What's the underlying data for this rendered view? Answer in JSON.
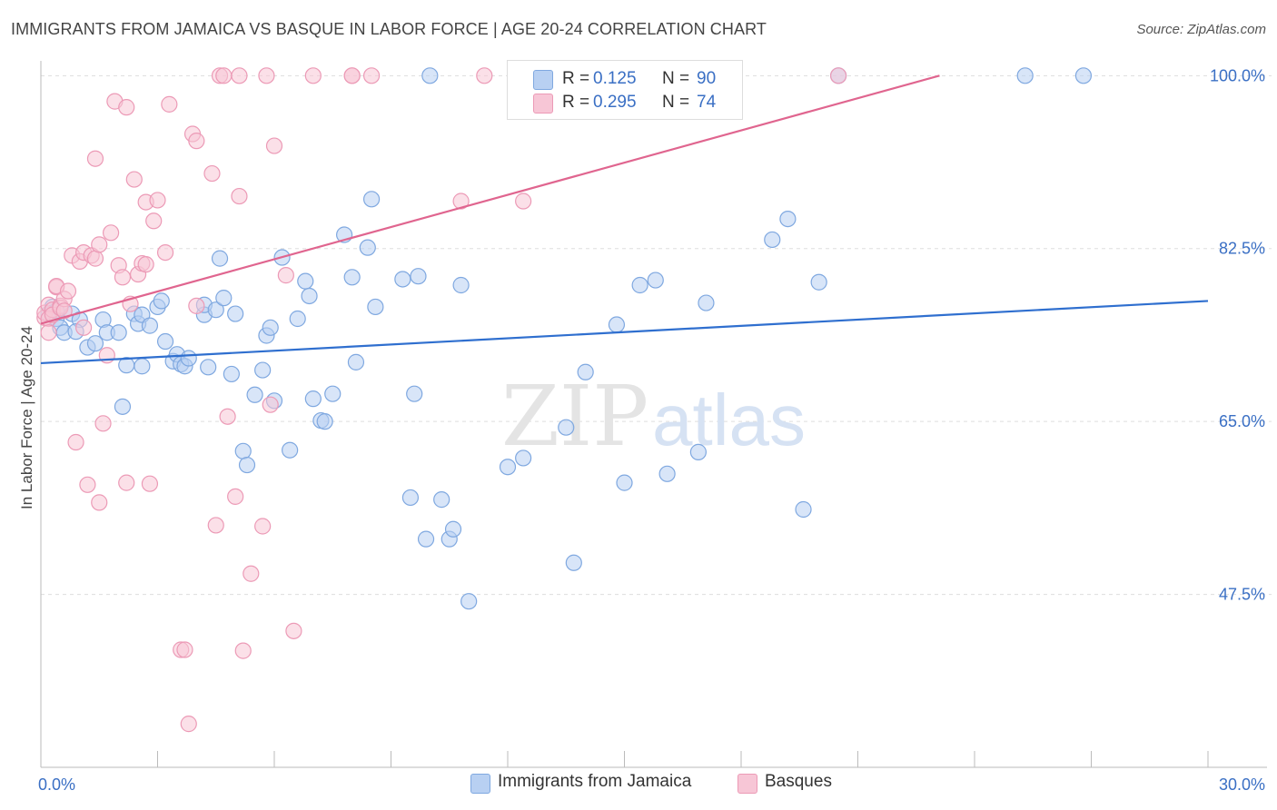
{
  "title": "IMMIGRANTS FROM JAMAICA VS BASQUE IN LABOR FORCE | AGE 20-24 CORRELATION CHART",
  "source": "Source: ZipAtlas.com",
  "watermark": {
    "zip": "ZIP",
    "atlas": "atlas"
  },
  "colors": {
    "blue_fill": "#b8d0f2",
    "blue_stroke": "#7fa8e0",
    "blue_line": "#2f6fcf",
    "pink_fill": "#f7c6d6",
    "pink_stroke": "#ec9ab6",
    "pink_line": "#e0658f",
    "axis_text": "#3a6fc4",
    "grid": "#dddddd"
  },
  "legend": {
    "rows": [
      {
        "r_label": "R =",
        "r_value": "0.125",
        "n_label": "N =",
        "n_value": "90",
        "series": "blue"
      },
      {
        "r_label": "R =",
        "r_value": "0.295",
        "n_label": "N =",
        "n_value": "74",
        "series": "pink"
      }
    ]
  },
  "bottom_legend": [
    {
      "label": "Immigrants from Jamaica",
      "series": "blue"
    },
    {
      "label": "Basques",
      "series": "pink"
    }
  ],
  "chart_data": {
    "type": "scatter",
    "title": "IMMIGRANTS FROM JAMAICA VS BASQUE IN LABOR FORCE | AGE 20-24 CORRELATION CHART",
    "xlabel": "",
    "ylabel": "In Labor Force | Age 20-24",
    "xlim": [
      0,
      30
    ],
    "ylim": [
      30,
      101.5
    ],
    "x_tick_labels": [
      {
        "value": 0,
        "label": "0.0%"
      },
      {
        "value": 30,
        "label": "30.0%"
      }
    ],
    "y_tick_labels": [
      {
        "value": 100,
        "label": "100.0%"
      },
      {
        "value": 82.5,
        "label": "82.5%"
      },
      {
        "value": 65,
        "label": "65.0%"
      },
      {
        "value": 47.5,
        "label": "47.5%"
      }
    ],
    "x_minor_ticks": [
      0,
      3,
      6,
      9,
      12,
      15,
      18,
      21,
      24,
      27,
      30
    ],
    "series": [
      {
        "name": "Immigrants from Jamaica",
        "color": "blue",
        "trend": {
          "x": [
            0,
            30
          ],
          "y": [
            70.9,
            77.2
          ]
        },
        "points": [
          [
            0.2,
            75.9
          ],
          [
            0.3,
            76.6
          ],
          [
            0.3,
            76.0
          ],
          [
            0.4,
            75.4
          ],
          [
            0.5,
            74.5
          ],
          [
            0.6,
            74.0
          ],
          [
            0.8,
            75.9
          ],
          [
            1.0,
            75.3
          ],
          [
            1.2,
            72.5
          ],
          [
            1.4,
            72.9
          ],
          [
            1.6,
            75.3
          ],
          [
            1.7,
            74.0
          ],
          [
            2.0,
            74.0
          ],
          [
            2.1,
            66.5
          ],
          [
            2.2,
            70.7
          ],
          [
            2.4,
            75.9
          ],
          [
            2.5,
            74.9
          ],
          [
            2.6,
            75.8
          ],
          [
            2.8,
            74.7
          ],
          [
            2.6,
            70.6
          ],
          [
            3.0,
            76.6
          ],
          [
            3.1,
            77.2
          ],
          [
            3.2,
            73.1
          ],
          [
            3.4,
            71.1
          ],
          [
            3.5,
            71.8
          ],
          [
            3.6,
            70.8
          ],
          [
            3.7,
            70.6
          ],
          [
            3.8,
            71.4
          ],
          [
            4.2,
            75.8
          ],
          [
            4.2,
            76.8
          ],
          [
            4.3,
            70.5
          ],
          [
            4.5,
            76.3
          ],
          [
            4.6,
            81.5
          ],
          [
            4.7,
            77.5
          ],
          [
            4.9,
            69.8
          ],
          [
            5.0,
            75.9
          ],
          [
            5.2,
            62.0
          ],
          [
            5.3,
            60.6
          ],
          [
            5.5,
            67.7
          ],
          [
            5.7,
            70.2
          ],
          [
            5.8,
            73.7
          ],
          [
            5.9,
            74.5
          ],
          [
            6.0,
            67.1
          ],
          [
            6.2,
            81.6
          ],
          [
            6.4,
            62.1
          ],
          [
            6.6,
            75.4
          ],
          [
            6.8,
            79.2
          ],
          [
            6.9,
            77.7
          ],
          [
            7.0,
            67.3
          ],
          [
            7.2,
            65.1
          ],
          [
            7.3,
            65.0
          ],
          [
            7.5,
            67.8
          ],
          [
            7.8,
            83.9
          ],
          [
            8.0,
            79.6
          ],
          [
            8.1,
            71.0
          ],
          [
            8.4,
            82.6
          ],
          [
            8.5,
            87.5
          ],
          [
            8.6,
            76.6
          ],
          [
            9.3,
            79.4
          ],
          [
            9.5,
            57.3
          ],
          [
            9.6,
            67.8
          ],
          [
            9.7,
            79.7
          ],
          [
            9.9,
            53.1
          ],
          [
            10.0,
            100.0
          ],
          [
            10.3,
            57.1
          ],
          [
            10.5,
            53.1
          ],
          [
            10.6,
            54.1
          ],
          [
            10.8,
            78.8
          ],
          [
            11.0,
            46.8
          ],
          [
            12.0,
            60.4
          ],
          [
            12.4,
            61.3
          ],
          [
            13.5,
            64.4
          ],
          [
            13.7,
            50.7
          ],
          [
            14.0,
            70.0
          ],
          [
            14.8,
            74.8
          ],
          [
            15.0,
            58.8
          ],
          [
            15.4,
            78.8
          ],
          [
            15.8,
            79.3
          ],
          [
            16.1,
            59.7
          ],
          [
            16.9,
            61.9
          ],
          [
            17.1,
            77.0
          ],
          [
            18.8,
            83.4
          ],
          [
            19.2,
            85.5
          ],
          [
            19.6,
            56.1
          ],
          [
            20.0,
            79.1
          ],
          [
            20.5,
            100.0
          ],
          [
            25.3,
            100.0
          ],
          [
            26.8,
            100.0
          ],
          [
            0.4,
            76.2
          ],
          [
            0.9,
            74.1
          ]
        ]
      },
      {
        "name": "Basques",
        "color": "pink",
        "trend": {
          "x": [
            0,
            23.1
          ],
          "y": [
            74.9,
            100.0
          ]
        },
        "points": [
          [
            0.1,
            75.5
          ],
          [
            0.1,
            76.0
          ],
          [
            0.2,
            76.8
          ],
          [
            0.2,
            75.4
          ],
          [
            0.2,
            74.0
          ],
          [
            0.3,
            76.3
          ],
          [
            0.3,
            75.8
          ],
          [
            0.4,
            78.6
          ],
          [
            0.4,
            78.7
          ],
          [
            0.5,
            76.7
          ],
          [
            0.5,
            76.5
          ],
          [
            0.6,
            77.4
          ],
          [
            0.6,
            76.2
          ],
          [
            0.7,
            78.2
          ],
          [
            0.8,
            81.8
          ],
          [
            0.9,
            62.9
          ],
          [
            1.0,
            81.2
          ],
          [
            1.1,
            74.5
          ],
          [
            1.1,
            82.1
          ],
          [
            1.2,
            58.6
          ],
          [
            1.3,
            81.8
          ],
          [
            1.4,
            81.5
          ],
          [
            1.4,
            91.6
          ],
          [
            1.5,
            82.9
          ],
          [
            1.5,
            56.8
          ],
          [
            1.6,
            64.8
          ],
          [
            1.7,
            71.7
          ],
          [
            1.8,
            84.1
          ],
          [
            1.9,
            97.4
          ],
          [
            2.0,
            80.8
          ],
          [
            2.1,
            79.6
          ],
          [
            2.2,
            96.8
          ],
          [
            2.3,
            76.9
          ],
          [
            2.2,
            58.8
          ],
          [
            2.4,
            89.5
          ],
          [
            2.5,
            79.9
          ],
          [
            2.6,
            81.0
          ],
          [
            2.7,
            80.9
          ],
          [
            2.7,
            87.2
          ],
          [
            2.8,
            58.7
          ],
          [
            2.9,
            85.3
          ],
          [
            3.0,
            87.4
          ],
          [
            3.2,
            82.1
          ],
          [
            3.3,
            97.1
          ],
          [
            3.6,
            41.9
          ],
          [
            3.7,
            41.9
          ],
          [
            3.8,
            34.4
          ],
          [
            4.0,
            76.7
          ],
          [
            3.9,
            94.1
          ],
          [
            4.0,
            93.4
          ],
          [
            4.4,
            90.1
          ],
          [
            4.5,
            54.5
          ],
          [
            4.6,
            100.0
          ],
          [
            4.7,
            100.0
          ],
          [
            4.8,
            65.5
          ],
          [
            5.0,
            57.4
          ],
          [
            5.1,
            100.0
          ],
          [
            5.1,
            87.8
          ],
          [
            5.2,
            41.8
          ],
          [
            5.4,
            49.6
          ],
          [
            5.7,
            54.4
          ],
          [
            5.8,
            100.0
          ],
          [
            5.9,
            66.7
          ],
          [
            6.0,
            92.9
          ],
          [
            6.3,
            79.8
          ],
          [
            6.5,
            43.8
          ],
          [
            7.0,
            100.0
          ],
          [
            8.0,
            100.0
          ],
          [
            8.0,
            100.0
          ],
          [
            8.5,
            100.0
          ],
          [
            10.8,
            87.3
          ],
          [
            11.4,
            100.0
          ],
          [
            12.4,
            87.3
          ],
          [
            20.5,
            100.0
          ]
        ]
      }
    ]
  }
}
